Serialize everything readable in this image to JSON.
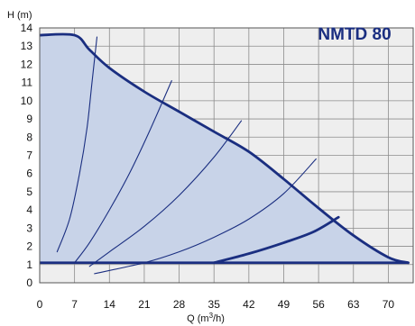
{
  "chart_data": {
    "type": "line",
    "title": "NMTD 80",
    "ylabel": "H (m)",
    "xlabel_base": "Q (m",
    "xlabel_sup": "3",
    "xlabel_tail": "/h)",
    "xlim": [
      0,
      75
    ],
    "ylim": [
      0,
      14
    ],
    "x_ticks": [
      0,
      7,
      14,
      21,
      28,
      35,
      42,
      49,
      56,
      63,
      70
    ],
    "y_ticks": [
      0,
      1,
      2,
      3,
      4,
      5,
      6,
      7,
      8,
      9,
      10,
      11,
      12,
      13,
      14
    ],
    "grid": true,
    "colors": {
      "curve": "#1a2e80",
      "area": "#c8d3e8",
      "grid": "#8c8c8c",
      "background": "#eeeeee",
      "title": "#1a2e80"
    },
    "series": [
      {
        "role": "max-envelope",
        "x": [
          0,
          7,
          10,
          14,
          21,
          28,
          35,
          42,
          49,
          56,
          63,
          70,
          74
        ],
        "y": [
          13.6,
          13.6,
          12.8,
          11.8,
          10.5,
          9.4,
          8.3,
          7.2,
          5.7,
          4.1,
          2.6,
          1.4,
          1.1
        ]
      },
      {
        "role": "min-pressure",
        "x": [
          0,
          74
        ],
        "y": [
          1.1,
          1.1
        ]
      },
      {
        "role": "control-segment",
        "x": [
          35,
          42,
          49,
          55,
          60
        ],
        "y": [
          1.1,
          1.6,
          2.2,
          2.8,
          3.6
        ]
      },
      {
        "role": "system-curve",
        "x": [
          3.5,
          6,
          8,
          9.5,
          10.5,
          11.5
        ],
        "y": [
          1.7,
          3.5,
          6,
          8.5,
          11,
          13.5
        ]
      },
      {
        "role": "system-curve",
        "x": [
          7,
          10,
          14,
          18,
          22,
          26.5
        ],
        "y": [
          1.1,
          2.2,
          4,
          6,
          8.3,
          11.1
        ]
      },
      {
        "role": "system-curve",
        "x": [
          10,
          14,
          21,
          28,
          35,
          40.5
        ],
        "y": [
          0.9,
          1.7,
          3.1,
          4.8,
          6.9,
          8.9
        ]
      },
      {
        "role": "system-curve",
        "x": [
          11,
          21,
          28,
          35,
          42,
          49,
          55.5
        ],
        "y": [
          0.5,
          1.1,
          1.7,
          2.5,
          3.5,
          4.9,
          6.8
        ]
      }
    ]
  }
}
